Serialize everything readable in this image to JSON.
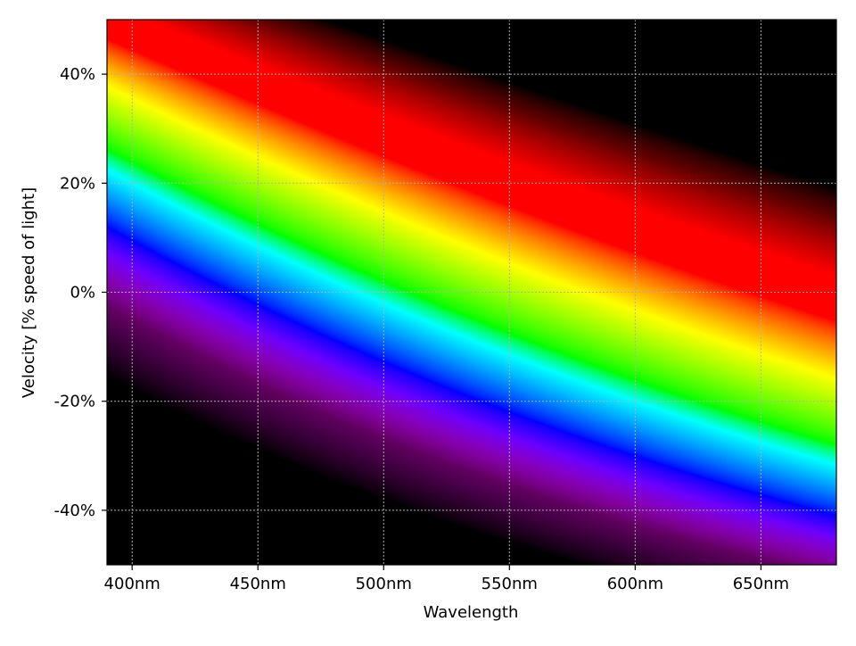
{
  "chart_data": {
    "type": "heatmap",
    "xlabel": "Wavelength",
    "ylabel": "Velocity [% speed of light]",
    "xlim": [
      390,
      680
    ],
    "ylim": [
      -50,
      50
    ],
    "x_ticks": [
      400,
      450,
      500,
      550,
      600,
      650
    ],
    "x_tick_labels": [
      "400nm",
      "450nm",
      "500nm",
      "550nm",
      "600nm",
      "650nm"
    ],
    "y_ticks": [
      -40,
      -20,
      0,
      20,
      40
    ],
    "y_tick_labels": [
      "-40%",
      "-20%",
      "0%",
      "20%",
      "40%"
    ],
    "grid": true,
    "grid_style": "dotted",
    "grid_color": "#b0b0b0",
    "background_color": "#000000",
    "colormap": "visible spectrum of Doppler-shifted light; color at (wavelength, velocity) is the source wavelength that appears at that observed wavelength",
    "spectrum_bands": [
      {
        "color": "violet",
        "hex": "#8000ff",
        "source_wavelength_nm": 400
      },
      {
        "color": "blue",
        "hex": "#0000ff",
        "source_wavelength_nm": 445
      },
      {
        "color": "cyan",
        "hex": "#00aaff",
        "source_wavelength_nm": 480
      },
      {
        "color": "green",
        "hex": "#00ff00",
        "source_wavelength_nm": 515
      },
      {
        "color": "yellow",
        "hex": "#ffff00",
        "source_wavelength_nm": 575
      },
      {
        "color": "orange",
        "hex": "#ff9900",
        "source_wavelength_nm": 600
      },
      {
        "color": "red",
        "hex": "#ff0000",
        "source_wavelength_nm": 650
      }
    ]
  }
}
